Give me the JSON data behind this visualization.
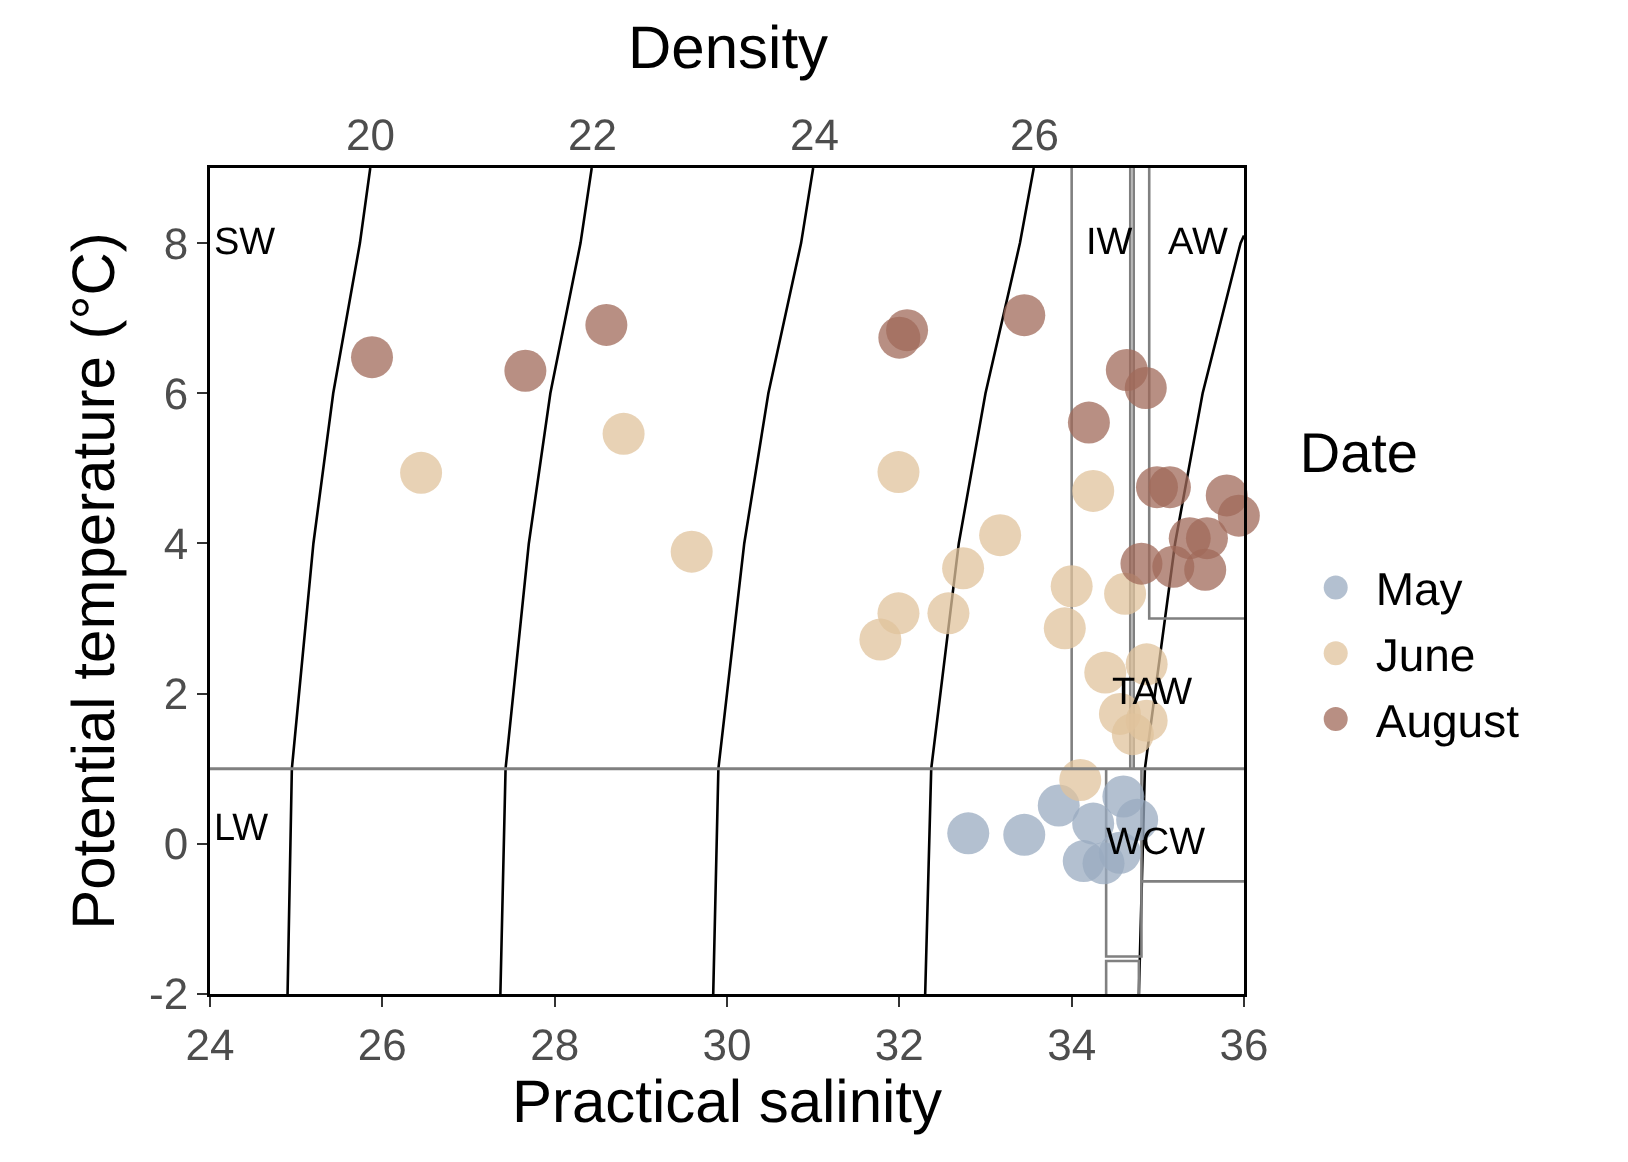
{
  "chart_data": {
    "type": "scatter",
    "xlabel": "Practical salinity",
    "ylabel": "Potential temperature (°C)",
    "legend_title": "Date",
    "legend": "right",
    "xlim": [
      24,
      36
    ],
    "xticks": [
      24,
      26,
      28,
      30,
      32,
      34,
      36
    ],
    "ylim": [
      -2,
      9
    ],
    "yticks": [
      -2,
      0,
      2,
      4,
      6,
      8
    ],
    "ref_lines": [
      {
        "axis": "y",
        "value": 1,
        "color": "#808080"
      }
    ],
    "series": [
      {
        "name": "May",
        "marker": "circle",
        "color": "#9aabc0",
        "x": [
          32.8,
          33.45,
          33.85,
          34.6,
          34.25,
          34.76,
          34.14,
          34.37,
          34.56
        ],
        "values": [
          0.14,
          0.12,
          0.51,
          0.63,
          0.27,
          0.32,
          -0.23,
          -0.26,
          -0.12
        ]
      },
      {
        "name": "June",
        "marker": "circle",
        "color": "#e0c39c",
        "x": [
          26.45,
          28.8,
          29.59,
          31.99,
          33.17,
          32.74,
          31.99,
          31.78,
          32.57,
          34.25,
          34.0,
          34.62,
          33.92,
          34.39,
          34.87,
          34.56,
          34.87,
          34.71,
          34.1
        ],
        "values": [
          4.94,
          5.46,
          3.89,
          4.95,
          4.11,
          3.67,
          3.07,
          2.72,
          3.07,
          4.7,
          3.43,
          3.33,
          2.87,
          2.28,
          2.39,
          1.73,
          1.64,
          1.46,
          0.85
        ]
      },
      {
        "name": "August",
        "marker": "circle",
        "color": "#a0695a",
        "x": [
          25.88,
          27.66,
          28.6,
          32.09,
          32.0,
          33.45,
          34.64,
          34.86,
          34.2,
          34.99,
          35.14,
          35.8,
          35.94,
          35.37,
          35.57,
          34.81,
          35.18,
          35.55
        ],
        "values": [
          6.48,
          6.3,
          6.91,
          6.84,
          6.74,
          7.04,
          6.31,
          6.07,
          5.61,
          4.75,
          4.75,
          4.64,
          4.37,
          4.07,
          4.07,
          3.73,
          3.69,
          3.65
        ]
      },
      {
        "type": "line",
        "name": "20",
        "marker": "none",
        "color": "#000000",
        "x": [
          24.9,
          24.95,
          25.2,
          25.43,
          25.74,
          25.86
        ],
        "values": [
          -2,
          1,
          4,
          6,
          8,
          9
        ]
      },
      {
        "type": "line",
        "name": "22",
        "marker": "none",
        "color": "#000000",
        "x": [
          27.37,
          27.43,
          27.7,
          27.95,
          28.3,
          28.43
        ],
        "values": [
          -2,
          1,
          4,
          6,
          8,
          9
        ]
      },
      {
        "type": "line",
        "name": "24",
        "marker": "none",
        "color": "#000000",
        "x": [
          29.84,
          29.9,
          30.2,
          30.48,
          30.86,
          31.0
        ],
        "values": [
          -2,
          1,
          4,
          6,
          8,
          9
        ]
      },
      {
        "type": "line",
        "name": "26",
        "marker": "none",
        "color": "#000000",
        "x": [
          32.3,
          32.37,
          32.69,
          33.0,
          33.4,
          33.56
        ],
        "values": [
          -2,
          1,
          4,
          6,
          8,
          9
        ]
      },
      {
        "type": "line",
        "marker": "none",
        "color": "#000000",
        "x": [
          34.78,
          34.85,
          35.2,
          35.52,
          35.96,
          36.0
        ],
        "values": [
          -2,
          1,
          4,
          6,
          8,
          8.1
        ]
      },
      {
        "type": "line",
        "marker": "none",
        "color": "#808080",
        "x": [
          34,
          34
        ],
        "values": [
          1,
          9
        ]
      },
      {
        "type": "line",
        "marker": "none",
        "color": "#808080",
        "x": [
          34.68,
          34.68
        ],
        "values": [
          1,
          9
        ]
      },
      {
        "type": "line",
        "marker": "none",
        "color": "#808080",
        "x": [
          34.72,
          34.72
        ],
        "values": [
          1,
          9
        ]
      },
      {
        "type": "line",
        "marker": "none",
        "color": "#808080",
        "x": [
          34.9,
          34.9,
          36
        ],
        "values": [
          9,
          3,
          3
        ]
      },
      {
        "type": "line",
        "marker": "none",
        "color": "#808080",
        "x": [
          34.81,
          36
        ],
        "values": [
          -0.5,
          -0.5
        ]
      },
      {
        "type": "line",
        "marker": "none",
        "color": "#808080",
        "x": [
          34.4,
          34.4,
          34.81,
          34.81
        ],
        "values": [
          1,
          -1.5,
          -1.5,
          1
        ]
      },
      {
        "type": "line",
        "marker": "none",
        "color": "#808080",
        "x": [
          34.4,
          34.4,
          34.78,
          34.78
        ],
        "values": [
          -2,
          -1.56,
          -1.56,
          -2
        ]
      }
    ],
    "annotations": [
      "Density",
      "SW",
      "LW",
      "IW",
      "AW",
      "TAW",
      "WCW"
    ]
  }
}
